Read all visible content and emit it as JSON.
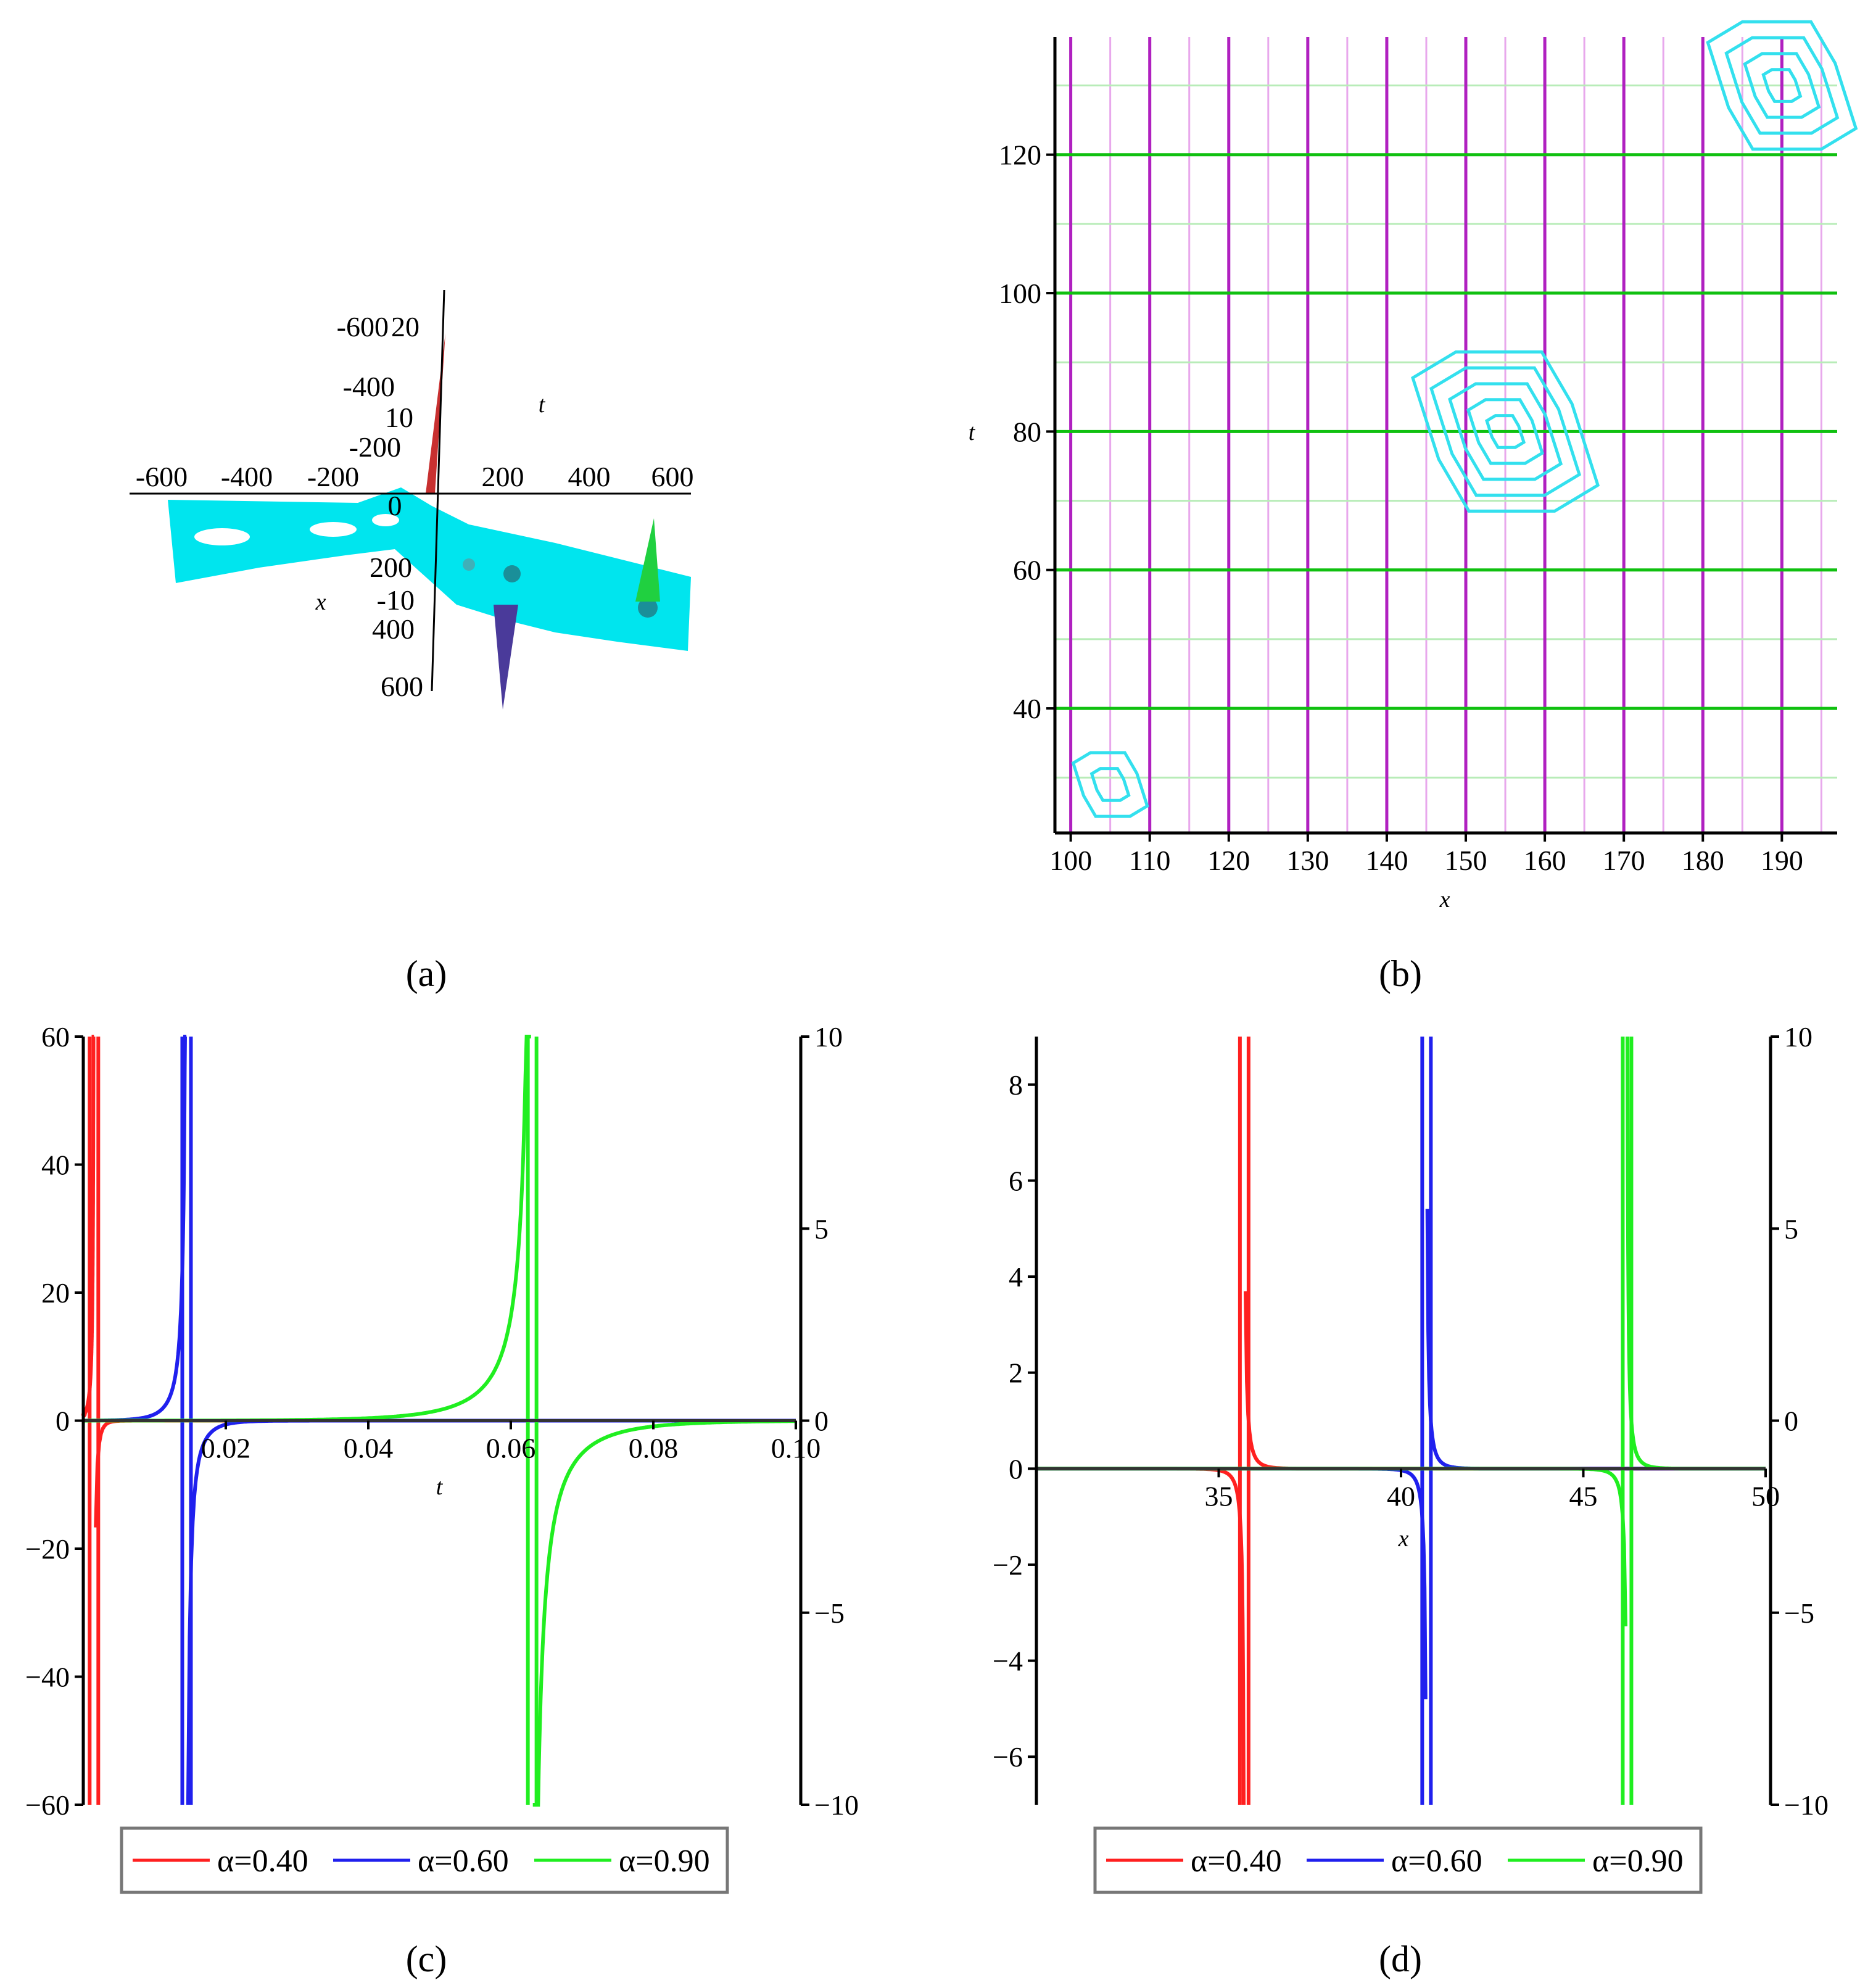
{
  "panels": [
    {
      "id": "a",
      "label": "(a)"
    },
    {
      "id": "b",
      "label": "(b)"
    },
    {
      "id": "c",
      "label": "(c)"
    },
    {
      "id": "d",
      "label": "(d)"
    }
  ],
  "chart_data": [
    {
      "panel": "a",
      "type": "surface3d",
      "xlabel": "x",
      "ylabel": "t",
      "x_ticks": [
        "-600",
        "-400",
        "-200",
        "0",
        "200",
        "400",
        "600"
      ],
      "t_ticks": [
        "-600",
        "-400",
        "-200",
        "200",
        "400",
        "600"
      ],
      "z_ticks": [
        "20",
        "10",
        "-10"
      ],
      "surface_color": "#00e5ee"
    },
    {
      "panel": "b",
      "type": "contour",
      "xlabel": "x",
      "ylabel": "t",
      "xlim": [
        98,
        197
      ],
      "ylim": [
        22,
        137
      ],
      "x_ticks": [
        100,
        110,
        120,
        130,
        140,
        150,
        160,
        170,
        180,
        190
      ],
      "y_ticks": [
        40,
        60,
        80,
        100,
        120
      ],
      "grid": true,
      "grid_colors": {
        "vertical": "#b020c0",
        "horizontal": "#10c010"
      },
      "contour_color": "#33e0ee",
      "contour_centers": [
        {
          "x": 105,
          "t": 29,
          "levels": 2
        },
        {
          "x": 155,
          "t": 80,
          "levels": 5
        },
        {
          "x": 190,
          "t": 130,
          "levels": 4
        }
      ]
    },
    {
      "panel": "c",
      "type": "line",
      "xlabel": "t",
      "ylabel": "",
      "xlim": [
        0,
        0.1
      ],
      "ylim": [
        -60,
        60
      ],
      "y2lim": [
        -10,
        10
      ],
      "x_ticks": [
        "0.02",
        "0.04",
        "0.06",
        "0.08",
        "0.10"
      ],
      "y_ticks": [
        -60,
        -40,
        -20,
        0,
        20,
        40,
        60
      ],
      "y2_ticks": [
        -10,
        -5,
        0,
        5,
        10
      ],
      "series": [
        {
          "name": "α=0.40",
          "color": "#ff2020",
          "pole": 0.0015
        },
        {
          "name": "α=0.60",
          "color": "#2020ee",
          "pole": 0.0145
        },
        {
          "name": "α=0.90",
          "color": "#20ee20",
          "pole": 0.063
        }
      ]
    },
    {
      "panel": "d",
      "type": "line",
      "xlabel": "x",
      "ylabel": "",
      "xlim": [
        30,
        50
      ],
      "ylim": [
        -7,
        9
      ],
      "y2lim": [
        -10,
        10
      ],
      "x_ticks": [
        "35",
        "40",
        "45",
        "50"
      ],
      "y_ticks": [
        -6,
        -4,
        -2,
        0,
        2,
        4,
        6,
        8
      ],
      "y2_ticks": [
        -10,
        -5,
        0,
        5,
        10
      ],
      "series": [
        {
          "name": "α=0.40",
          "color": "#ff2020",
          "pole": 35.7
        },
        {
          "name": "α=0.60",
          "color": "#2020ee",
          "pole": 40.7
        },
        {
          "name": "α=0.90",
          "color": "#20ee20",
          "pole": 46.2
        }
      ]
    }
  ]
}
